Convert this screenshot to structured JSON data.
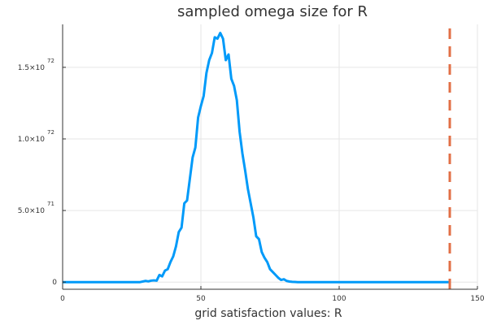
{
  "chart_data": {
    "type": "line",
    "title": "sampled omega size for R",
    "xlabel": "grid satisfaction values: R",
    "ylabel": "",
    "xlim": [
      0,
      150
    ],
    "ylim": [
      -5e+70,
      1.8e+72
    ],
    "x_ticks": [
      {
        "value": 0,
        "label": "0"
      },
      {
        "value": 50,
        "label": "50"
      },
      {
        "value": 100,
        "label": "100"
      },
      {
        "value": 150,
        "label": "150"
      }
    ],
    "y_ticks": [
      {
        "value": 0,
        "mant": "0",
        "exp": ""
      },
      {
        "value": 5e+71,
        "mant": "5.0×10",
        "exp": "71"
      },
      {
        "value": 1e+72,
        "mant": "1.0×10",
        "exp": "72"
      },
      {
        "value": 1.5e+72,
        "mant": "1.5×10",
        "exp": "72"
      }
    ],
    "grid": true,
    "legend": "none",
    "series": [
      {
        "color": "#009AF9",
        "style": "solid",
        "x": [
          0,
          10,
          20,
          28,
          30,
          31,
          32,
          33,
          34,
          35,
          36,
          37,
          38,
          39,
          40,
          41,
          42,
          43,
          44,
          45,
          46,
          47,
          48,
          49,
          50,
          51,
          52,
          53,
          54,
          55,
          56,
          57,
          58,
          59,
          60,
          61,
          62,
          63,
          64,
          65,
          66,
          67,
          68,
          69,
          70,
          71,
          72,
          73,
          74,
          75,
          76,
          77,
          78,
          79,
          80,
          81,
          82,
          83,
          84,
          85,
          90,
          100,
          110,
          120,
          130,
          140
        ],
        "y": [
          0,
          0,
          0,
          0,
          8e+69,
          5e+69,
          1e+70,
          1.2e+70,
          1e+70,
          5e+70,
          4e+70,
          8e+70,
          9e+70,
          1.4e+71,
          1.8e+71,
          2.5e+71,
          3.5e+71,
          3.8e+71,
          5.5e+71,
          5.7e+71,
          7.2e+71,
          8.7e+71,
          9.4e+71,
          1.15e+72,
          1.23e+72,
          1.3e+72,
          1.46e+72,
          1.55e+72,
          1.6e+72,
          1.71e+72,
          1.7e+72,
          1.74e+72,
          1.7e+72,
          1.55e+72,
          1.59e+72,
          1.42e+72,
          1.37e+72,
          1.27e+72,
          1.05e+72,
          9e+71,
          7.8e+71,
          6.5e+71,
          5.5e+71,
          4.5e+71,
          3.2e+71,
          3e+71,
          2.1e+71,
          1.7e+71,
          1.4e+71,
          9e+70,
          7e+70,
          5e+70,
          3e+70,
          1.5e+70,
          2e+70,
          8e+69,
          4e+69,
          2e+69,
          1e+69,
          0,
          0,
          0,
          0,
          0,
          0,
          0
        ]
      },
      {
        "color": "#E26F46",
        "style": "dashed",
        "x": [
          140,
          140
        ],
        "y": [
          -5e+70,
          1.8e+72
        ]
      }
    ]
  }
}
